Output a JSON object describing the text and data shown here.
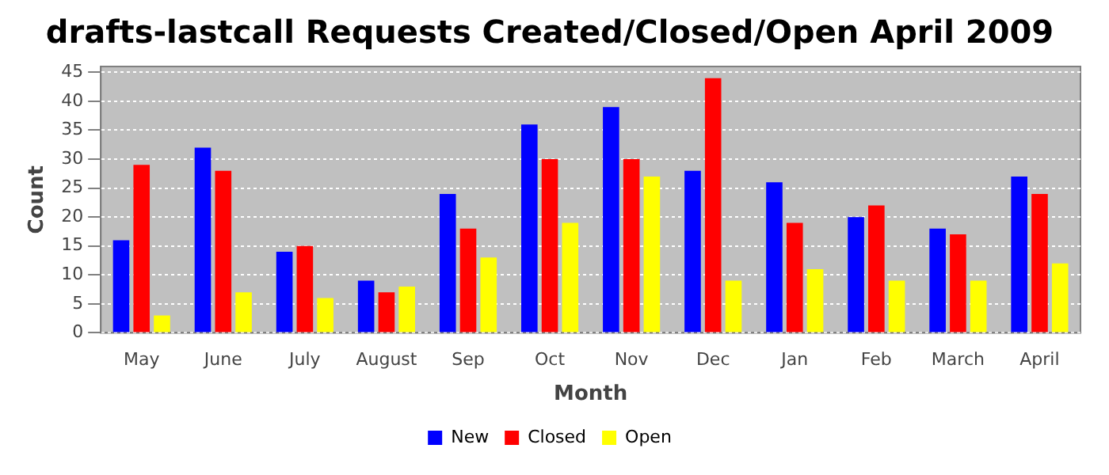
{
  "chart_data": {
    "type": "bar",
    "title": "drafts-lastcall Requests Created/Closed/Open April 2009",
    "xlabel": "Month",
    "ylabel": "Count",
    "categories": [
      "May",
      "June",
      "July",
      "August",
      "Sep",
      "Oct",
      "Nov",
      "Dec",
      "Jan",
      "Feb",
      "March",
      "April"
    ],
    "series": [
      {
        "name": "New",
        "color": "#0000ff",
        "values": [
          16,
          32,
          14,
          9,
          24,
          36,
          39,
          28,
          26,
          20,
          18,
          27
        ]
      },
      {
        "name": "Closed",
        "color": "#ff0000",
        "values": [
          29,
          28,
          15,
          7,
          18,
          30,
          30,
          44,
          19,
          22,
          17,
          24
        ]
      },
      {
        "name": "Open",
        "color": "#ffff00",
        "values": [
          3,
          7,
          6,
          8,
          13,
          19,
          27,
          9,
          11,
          9,
          9,
          12
        ]
      }
    ],
    "ylim": [
      0,
      46
    ],
    "yticks": [
      0,
      5,
      10,
      15,
      20,
      25,
      30,
      35,
      40,
      45
    ],
    "grid": "y",
    "legend": "bottom"
  }
}
